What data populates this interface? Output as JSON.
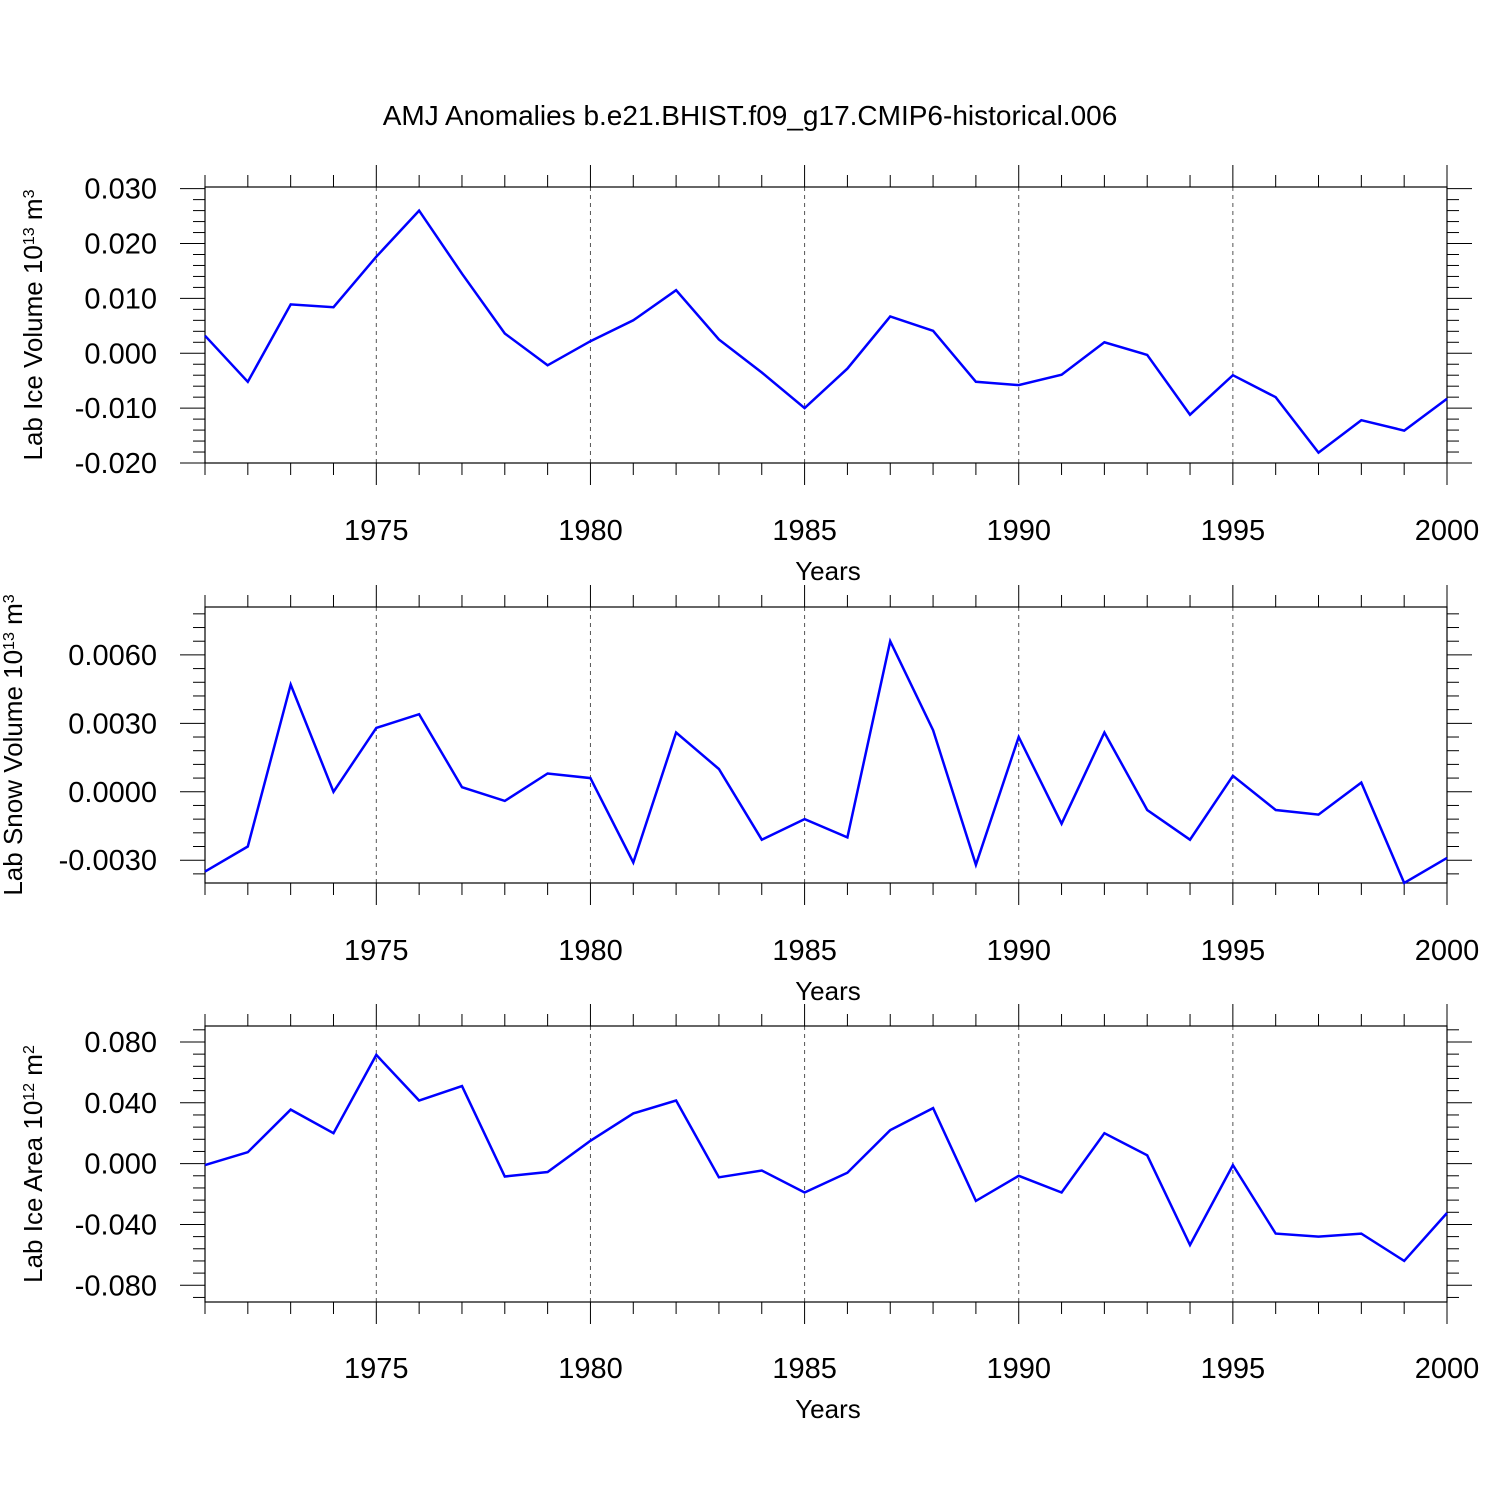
{
  "figure": {
    "title": "AMJ Anomalies b.e21.BHIST.f09_g17.CMIP6-historical.006"
  },
  "style": {
    "line_color": "#0000ff",
    "axis_color": "#000000",
    "grid_color": "#555555"
  },
  "chart_data": [
    {
      "type": "line",
      "xlabel": "Years",
      "ylabel": "Lab Ice Volume 10",
      "ylabel_exp": "13",
      "ylabel_unit": " m",
      "ylabel_unit_exp": "3",
      "xlim": [
        1971,
        2000
      ],
      "ylim": [
        -0.02,
        0.0303
      ],
      "x_ticks": [
        1975,
        1980,
        1985,
        1990,
        1995,
        2000
      ],
      "y_ticks": [
        -0.02,
        -0.01,
        0.0,
        0.01,
        0.02,
        0.03
      ],
      "y_tick_labels": [
        "-0.020",
        "-0.010",
        "0.000",
        "0.010",
        "0.020",
        "0.030"
      ],
      "y_minor_step": 0.002,
      "grid": "vertical dashed at major x ticks",
      "x": [
        1971,
        1972,
        1973,
        1974,
        1975,
        1976,
        1977,
        1978,
        1979,
        1980,
        1981,
        1982,
        1983,
        1984,
        1985,
        1986,
        1987,
        1988,
        1989,
        1990,
        1991,
        1992,
        1993,
        1994,
        1995,
        1996,
        1997,
        1998,
        1999,
        2000
      ],
      "values": [
        0.0032,
        -0.0052,
        0.0089,
        0.0084,
        0.0176,
        0.026,
        0.0145,
        0.0036,
        -0.0022,
        0.0022,
        0.006,
        0.0115,
        0.0025,
        -0.0035,
        -0.01,
        -0.0028,
        0.0067,
        0.0041,
        -0.0052,
        -0.0058,
        -0.0039,
        0.002,
        -0.0003,
        -0.0112,
        -0.004,
        -0.008,
        -0.0181,
        -0.0122,
        -0.0141,
        -0.0083
      ]
    },
    {
      "type": "line",
      "xlabel": "Years",
      "ylabel": "Lab Snow Volume 10",
      "ylabel_exp": "13",
      "ylabel_unit": " m",
      "ylabel_unit_exp": "3",
      "xlim": [
        1971,
        2000
      ],
      "ylim": [
        -0.004,
        0.0081
      ],
      "x_ticks": [
        1975,
        1980,
        1985,
        1990,
        1995,
        2000
      ],
      "y_ticks": [
        -0.003,
        0.0,
        0.003,
        0.006
      ],
      "y_tick_labels": [
        "-0.0030",
        "0.0000",
        "0.0030",
        "0.0060"
      ],
      "y_minor_step": 0.0006,
      "grid": "vertical dashed at major x ticks",
      "x": [
        1971,
        1972,
        1973,
        1974,
        1975,
        1976,
        1977,
        1978,
        1979,
        1980,
        1981,
        1982,
        1983,
        1984,
        1985,
        1986,
        1987,
        1988,
        1989,
        1990,
        1991,
        1992,
        1993,
        1994,
        1995,
        1996,
        1997,
        1998,
        1999,
        2000
      ],
      "values": [
        -0.0035,
        -0.0024,
        0.0047,
        0.0,
        0.0028,
        0.0034,
        0.0002,
        -0.0004,
        0.0008,
        0.0006,
        -0.0031,
        0.0026,
        0.001,
        -0.0021,
        -0.0012,
        -0.002,
        0.0066,
        0.0027,
        -0.0032,
        0.0024,
        -0.0014,
        0.0026,
        -0.0008,
        -0.0021,
        0.0007,
        -0.0008,
        -0.001,
        0.0004,
        -0.004,
        -0.0029
      ]
    },
    {
      "type": "line",
      "xlabel": "Years",
      "ylabel": "Lab Ice Area 10",
      "ylabel_exp": "12",
      "ylabel_unit": " m",
      "ylabel_unit_exp": "2",
      "xlim": [
        1971,
        2000
      ],
      "ylim": [
        -0.091,
        0.0905
      ],
      "x_ticks": [
        1975,
        1980,
        1985,
        1990,
        1995,
        2000
      ],
      "y_ticks": [
        -0.08,
        -0.04,
        0.0,
        0.04,
        0.08
      ],
      "y_tick_labels": [
        "-0.080",
        "-0.040",
        "0.000",
        "0.040",
        "0.080"
      ],
      "y_minor_step": 0.008,
      "grid": "vertical dashed at major x ticks",
      "x": [
        1971,
        1972,
        1973,
        1974,
        1975,
        1976,
        1977,
        1978,
        1979,
        1980,
        1981,
        1982,
        1983,
        1984,
        1985,
        1986,
        1987,
        1988,
        1989,
        1990,
        1991,
        1992,
        1993,
        1994,
        1995,
        1996,
        1997,
        1998,
        1999,
        2000
      ],
      "values": [
        -0.001,
        0.0075,
        0.0355,
        0.02,
        0.0715,
        0.0415,
        0.051,
        -0.0085,
        -0.0055,
        0.015,
        0.033,
        0.0415,
        -0.009,
        -0.0045,
        -0.019,
        -0.006,
        0.022,
        0.0365,
        -0.0245,
        -0.008,
        -0.019,
        0.02,
        0.0055,
        -0.0535,
        -0.001,
        -0.046,
        -0.048,
        -0.046,
        -0.064,
        -0.0325
      ]
    }
  ]
}
